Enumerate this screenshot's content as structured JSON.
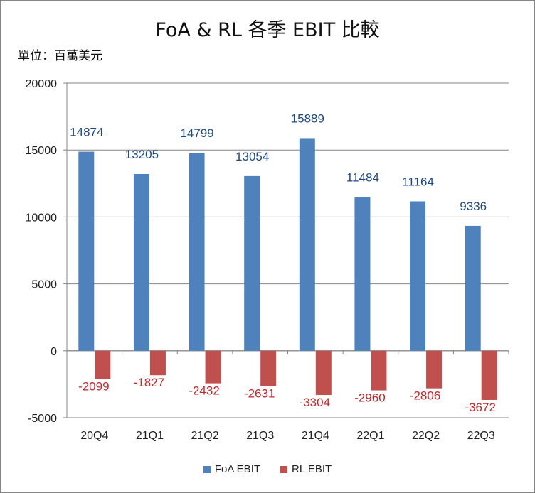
{
  "chart_data": {
    "type": "bar",
    "title": "FoA & RL 各季 EBIT 比較",
    "unit_label": "單位：百萬美元",
    "categories": [
      "20Q4",
      "21Q1",
      "21Q2",
      "21Q3",
      "21Q4",
      "22Q1",
      "22Q2",
      "22Q3"
    ],
    "series": [
      {
        "name": "FoA EBIT",
        "color": "#4F81BD",
        "label_color": "#1F497D",
        "values": [
          14874,
          13205,
          14799,
          13054,
          15889,
          11484,
          11164,
          9336
        ]
      },
      {
        "name": "RL EBIT",
        "color": "#C0504D",
        "label_color": "#C0282D",
        "values": [
          -2099,
          -1827,
          -2432,
          -2631,
          -3304,
          -2960,
          -2806,
          -3672
        ]
      }
    ],
    "ylim": [
      -5000,
      20000
    ],
    "yticks": [
      -5000,
      0,
      5000,
      10000,
      15000,
      20000
    ],
    "grid": true,
    "legend_position": "bottom",
    "xlabel": "",
    "ylabel": ""
  }
}
